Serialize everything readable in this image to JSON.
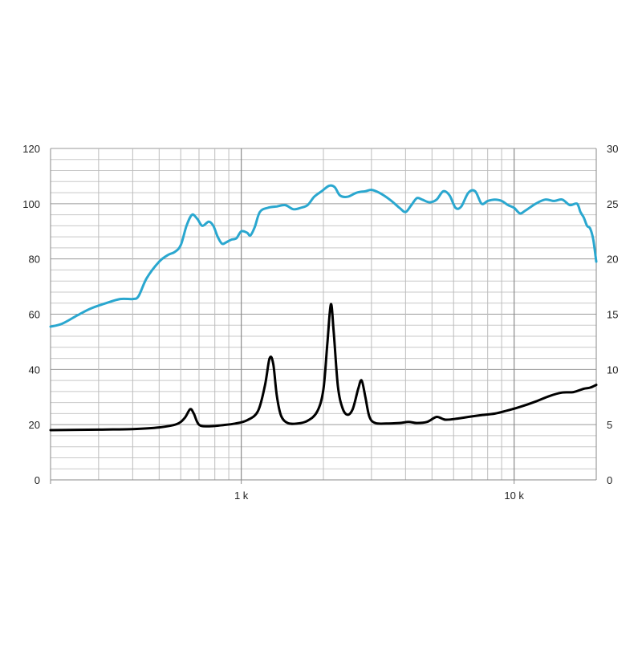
{
  "chart_data": {
    "type": "line",
    "title": "",
    "xlabel": "",
    "ylabel": "",
    "x_scale": "log",
    "xlim": [
      200,
      20000
    ],
    "x_tick_labels": [
      {
        "x": 1000,
        "label": "1 k"
      },
      {
        "x": 10000,
        "label": "10 k"
      }
    ],
    "ylim_left": [
      0,
      120
    ],
    "y_ticks_left": [
      0,
      20,
      40,
      60,
      80,
      100,
      120
    ],
    "ylim_right": [
      0,
      30
    ],
    "y_ticks_right": [
      0,
      5,
      10,
      15,
      20,
      25,
      30
    ],
    "grid": true,
    "legend": "none",
    "series": [
      {
        "axis": "left",
        "color": "#2aa7cf",
        "points": [
          [
            200,
            55.5
          ],
          [
            220,
            56.5
          ],
          [
            250,
            59.5
          ],
          [
            280,
            62
          ],
          [
            320,
            64
          ],
          [
            360,
            65.5
          ],
          [
            400,
            65.5
          ],
          [
            420,
            66.5
          ],
          [
            450,
            73
          ],
          [
            500,
            79
          ],
          [
            540,
            81.5
          ],
          [
            570,
            82.5
          ],
          [
            600,
            85
          ],
          [
            630,
            92
          ],
          [
            660,
            96
          ],
          [
            690,
            94.5
          ],
          [
            720,
            92
          ],
          [
            760,
            93.5
          ],
          [
            790,
            92
          ],
          [
            820,
            88
          ],
          [
            850,
            85.5
          ],
          [
            880,
            86
          ],
          [
            920,
            87
          ],
          [
            960,
            87.5
          ],
          [
            1000,
            90
          ],
          [
            1050,
            89.5
          ],
          [
            1080,
            88.5
          ],
          [
            1120,
            91.5
          ],
          [
            1170,
            97
          ],
          [
            1250,
            98.5
          ],
          [
            1350,
            99
          ],
          [
            1450,
            99.5
          ],
          [
            1550,
            98
          ],
          [
            1650,
            98.5
          ],
          [
            1750,
            99.5
          ],
          [
            1850,
            102.5
          ],
          [
            1970,
            104.5
          ],
          [
            2100,
            106.5
          ],
          [
            2200,
            106
          ],
          [
            2300,
            103
          ],
          [
            2450,
            102.5
          ],
          [
            2650,
            104
          ],
          [
            2850,
            104.5
          ],
          [
            3000,
            105
          ],
          [
            3200,
            104
          ],
          [
            3500,
            101.5
          ],
          [
            3800,
            98.5
          ],
          [
            4000,
            97
          ],
          [
            4200,
            99.5
          ],
          [
            4400,
            102
          ],
          [
            4600,
            101.5
          ],
          [
            4900,
            100.5
          ],
          [
            5200,
            101.5
          ],
          [
            5500,
            104.5
          ],
          [
            5800,
            103
          ],
          [
            6100,
            98.5
          ],
          [
            6400,
            99
          ],
          [
            6800,
            104
          ],
          [
            7200,
            104.5
          ],
          [
            7600,
            100
          ],
          [
            8000,
            101
          ],
          [
            8500,
            101.5
          ],
          [
            9000,
            101
          ],
          [
            9500,
            99.5
          ],
          [
            10000,
            98.5
          ],
          [
            10500,
            96.5
          ],
          [
            11000,
            97.5
          ],
          [
            12000,
            100
          ],
          [
            13000,
            101.5
          ],
          [
            14000,
            101
          ],
          [
            15000,
            101.5
          ],
          [
            16000,
            99.5
          ],
          [
            17000,
            100
          ],
          [
            17500,
            97
          ],
          [
            18000,
            95
          ],
          [
            18500,
            92
          ],
          [
            19000,
            91
          ],
          [
            19500,
            87
          ],
          [
            20000,
            79
          ]
        ]
      },
      {
        "axis": "right",
        "color": "#000000",
        "points": [
          [
            200,
            4.5
          ],
          [
            300,
            4.55
          ],
          [
            400,
            4.6
          ],
          [
            500,
            4.75
          ],
          [
            580,
            5.05
          ],
          [
            620,
            5.6
          ],
          [
            650,
            6.4
          ],
          [
            670,
            6.0
          ],
          [
            700,
            5.0
          ],
          [
            760,
            4.85
          ],
          [
            850,
            4.95
          ],
          [
            950,
            5.1
          ],
          [
            1050,
            5.4
          ],
          [
            1150,
            6.2
          ],
          [
            1220,
            8.5
          ],
          [
            1270,
            11.0
          ],
          [
            1310,
            10.5
          ],
          [
            1350,
            7.6
          ],
          [
            1400,
            5.8
          ],
          [
            1480,
            5.15
          ],
          [
            1600,
            5.1
          ],
          [
            1750,
            5.35
          ],
          [
            1900,
            6.2
          ],
          [
            2000,
            8.2
          ],
          [
            2070,
            12.5
          ],
          [
            2130,
            15.9
          ],
          [
            2180,
            13.5
          ],
          [
            2260,
            8.5
          ],
          [
            2350,
            6.5
          ],
          [
            2450,
            5.9
          ],
          [
            2560,
            6.4
          ],
          [
            2680,
            8.2
          ],
          [
            2760,
            9.0
          ],
          [
            2850,
            7.5
          ],
          [
            2950,
            5.7
          ],
          [
            3100,
            5.15
          ],
          [
            3400,
            5.1
          ],
          [
            3800,
            5.15
          ],
          [
            4100,
            5.25
          ],
          [
            4400,
            5.15
          ],
          [
            4800,
            5.25
          ],
          [
            5200,
            5.7
          ],
          [
            5600,
            5.45
          ],
          [
            6200,
            5.55
          ],
          [
            6800,
            5.7
          ],
          [
            7500,
            5.85
          ],
          [
            8500,
            6.0
          ],
          [
            9500,
            6.3
          ],
          [
            10500,
            6.6
          ],
          [
            12000,
            7.1
          ],
          [
            13500,
            7.6
          ],
          [
            15000,
            7.9
          ],
          [
            16500,
            7.95
          ],
          [
            18000,
            8.25
          ],
          [
            19000,
            8.35
          ],
          [
            20000,
            8.6
          ]
        ]
      }
    ]
  }
}
